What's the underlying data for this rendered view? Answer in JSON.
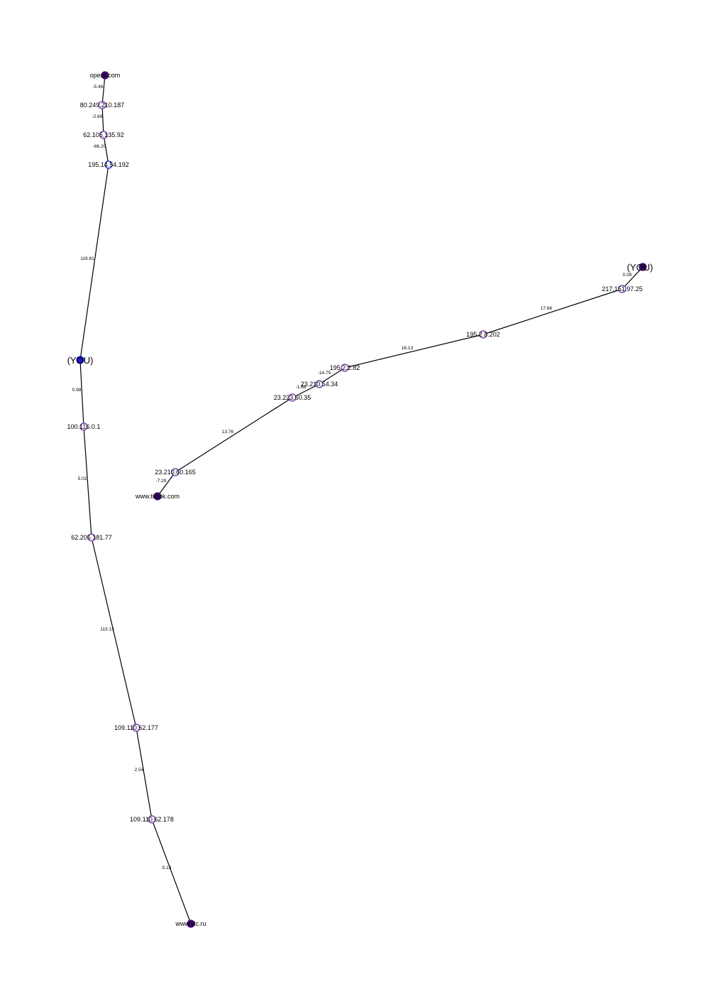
{
  "colors": {
    "endpoint": "#3d0a6b",
    "hop_outline": "#6b2aa8",
    "you_left": "#1a1ad0",
    "you_left_outline": "#1a1ad0",
    "edge": "#000000"
  },
  "graph": {
    "nodes": [
      {
        "id": "n_opera",
        "label": "opera.com",
        "kind": "endpoint"
      },
      {
        "id": "n_80",
        "label": "80.249.210.187",
        "kind": "hop"
      },
      {
        "id": "n_62_105",
        "label": "62.105.135.92",
        "kind": "hop"
      },
      {
        "id": "n_195_14",
        "label": "195.14.54.192",
        "kind": "hop",
        "outline": "blue"
      },
      {
        "id": "n_you_left",
        "label": "(YOU)",
        "kind": "you"
      },
      {
        "id": "n_100",
        "label": "100.116.0.1",
        "kind": "hop"
      },
      {
        "id": "n_62_205",
        "label": "62.205.181.77",
        "kind": "hop"
      },
      {
        "id": "n_109_177",
        "label": "109.110.62.177",
        "kind": "hop"
      },
      {
        "id": "n_109_178",
        "label": "109.110.62.178",
        "kind": "hop"
      },
      {
        "id": "n_vlc",
        "label": "www.vlc.ru",
        "kind": "endpoint"
      },
      {
        "id": "n_you_right",
        "label": "(YOU)",
        "kind": "endpoint"
      },
      {
        "id": "n_217",
        "label": "217.151.97.25",
        "kind": "hop"
      },
      {
        "id": "n_195_2_202",
        "label": "195.2.8.202",
        "kind": "hop"
      },
      {
        "id": "n_195_2_82",
        "label": "195.2.2.82",
        "kind": "hop"
      },
      {
        "id": "n_23_54",
        "label": "23.210.54.34",
        "kind": "hop"
      },
      {
        "id": "n_23_223",
        "label": "23.223.60.35",
        "kind": "hop"
      },
      {
        "id": "n_23_165",
        "label": "23.210.60.165",
        "kind": "hop"
      },
      {
        "id": "n_tiktok",
        "label": "www.tiktok.com",
        "kind": "endpoint"
      }
    ],
    "edges": [
      {
        "from": "n_opera",
        "to": "n_80",
        "label": "-5.46"
      },
      {
        "from": "n_80",
        "to": "n_62_105",
        "label": "-2.69"
      },
      {
        "from": "n_62_105",
        "to": "n_195_14",
        "label": "-66.20"
      },
      {
        "from": "n_195_14",
        "to": "n_you_left",
        "label": "119.81"
      },
      {
        "from": "n_you_left",
        "to": "n_100",
        "label": "0.98"
      },
      {
        "from": "n_100",
        "to": "n_62_205",
        "label": "5.02"
      },
      {
        "from": "n_62_205",
        "to": "n_109_177",
        "label": "113.13"
      },
      {
        "from": "n_109_177",
        "to": "n_109_178",
        "label": "2.54"
      },
      {
        "from": "n_109_178",
        "to": "n_vlc",
        "label": "5.13"
      },
      {
        "from": "n_you_right",
        "to": "n_217",
        "label": "0.09"
      },
      {
        "from": "n_217",
        "to": "n_195_2_202",
        "label": "17.66"
      },
      {
        "from": "n_195_2_202",
        "to": "n_195_2_82",
        "label": "16.13"
      },
      {
        "from": "n_195_2_82",
        "to": "n_23_54",
        "label": "-14.75"
      },
      {
        "from": "n_23_54",
        "to": "n_23_223",
        "label": "-1.66"
      },
      {
        "from": "n_23_223",
        "to": "n_23_165",
        "label": "13.76"
      },
      {
        "from": "n_23_165",
        "to": "n_tiktok",
        "label": "-7.29"
      }
    ]
  }
}
